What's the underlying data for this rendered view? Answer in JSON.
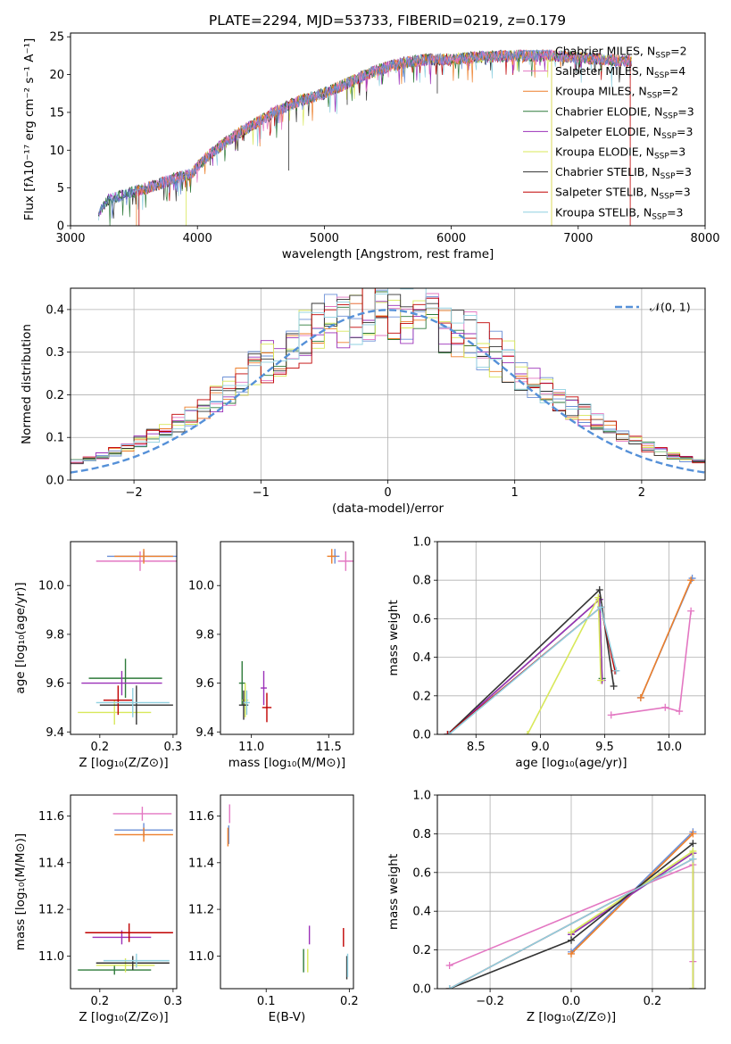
{
  "figure": {
    "title": "PLATE=2294, MJD=53733, FIBERID=0219, z=0.179"
  },
  "colors": {
    "chabrier_miles": "#6b8fd6",
    "salpeter_miles": "#e377c2",
    "kroupa_miles": "#ed7f2a",
    "chabrier_elodie": "#2e7a3a",
    "salpeter_elodie": "#9b30b8",
    "kroupa_elodie": "#d8e85a",
    "chabrier_stelib": "#333333",
    "salpeter_stelib": "#c00000",
    "kroupa_stelib": "#8fd0e0",
    "gaussian": "#5590d8",
    "grid": "#b0b0b0"
  },
  "legend_spectrum": [
    {
      "text": "Chabrier MILES, N",
      "sub": "SSP",
      "tail": "=2",
      "color_key": "chabrier_miles"
    },
    {
      "text": "Salpeter MILES, N",
      "sub": "SSP",
      "tail": "=4",
      "color_key": "salpeter_miles"
    },
    {
      "text": "Kroupa MILES, N",
      "sub": "SSP",
      "tail": "=2",
      "color_key": "kroupa_miles"
    },
    {
      "text": "Chabrier ELODIE, N",
      "sub": "SSP",
      "tail": "=3",
      "color_key": "chabrier_elodie"
    },
    {
      "text": "Salpeter ELODIE, N",
      "sub": "SSP",
      "tail": "=3",
      "color_key": "salpeter_elodie"
    },
    {
      "text": "Kroupa ELODIE, N",
      "sub": "SSP",
      "tail": "=3",
      "color_key": "kroupa_elodie"
    },
    {
      "text": "Chabrier STELIB, N",
      "sub": "SSP",
      "tail": "=3",
      "color_key": "chabrier_stelib"
    },
    {
      "text": "Salpeter STELIB, N",
      "sub": "SSP",
      "tail": "=3",
      "color_key": "salpeter_stelib"
    },
    {
      "text": "Kroupa STELIB, N",
      "sub": "SSP",
      "tail": "=3",
      "color_key": "kroupa_stelib"
    }
  ],
  "chart_data": [
    {
      "id": "spectrum",
      "type": "line",
      "xlabel": "wavelength [Angstrom, rest frame]",
      "ylabel": "Flux [fλ10⁻¹⁷ erg cm⁻² s⁻¹ A⁻¹]",
      "xlim": [
        3000,
        8000
      ],
      "ylim": [
        0,
        25.5
      ],
      "xticks": [
        3000,
        4000,
        5000,
        6000,
        7000,
        8000
      ],
      "yticks": [
        0,
        5,
        10,
        15,
        20,
        25
      ],
      "grid": false,
      "legend": "top-right",
      "continuum": [
        [
          3220,
          1.5
        ],
        [
          3300,
          3.5
        ],
        [
          3500,
          4.5
        ],
        [
          3700,
          5.5
        ],
        [
          3800,
          6.2
        ],
        [
          3950,
          6.8
        ],
        [
          4000,
          7.8
        ],
        [
          4100,
          9.5
        ],
        [
          4300,
          12.0
        ],
        [
          4400,
          13.0
        ],
        [
          4600,
          15.0
        ],
        [
          4800,
          16.5
        ],
        [
          5000,
          17.5
        ],
        [
          5200,
          19.0
        ],
        [
          5400,
          20.5
        ],
        [
          5600,
          21.5
        ],
        [
          5800,
          22.0
        ],
        [
          6000,
          22.0
        ],
        [
          6200,
          22.3
        ],
        [
          6500,
          22.5
        ],
        [
          6800,
          22.5
        ],
        [
          7000,
          22.3
        ],
        [
          7200,
          22.0
        ],
        [
          7420,
          21.8
        ]
      ],
      "features": [
        {
          "x": 4720,
          "y": 7.3
        },
        {
          "x": 5890,
          "y": 17.5
        },
        {
          "x": 5180,
          "y": 16.0
        },
        {
          "x": 4300,
          "y": 10.0
        },
        {
          "x": 4100,
          "y": 8.0
        }
      ]
    },
    {
      "id": "residuals",
      "type": "histogram",
      "xlabel": "(data-model)/error",
      "ylabel": "Normed distribution",
      "xlim": [
        -2.5,
        2.5
      ],
      "ylim": [
        0,
        0.45
      ],
      "xticks": [
        -2,
        -1,
        0,
        1,
        2
      ],
      "yticks": [
        0.0,
        0.1,
        0.2,
        0.3,
        0.4
      ],
      "grid": true,
      "legend": "top-right",
      "gaussian_label": "𝒩(0, 1)",
      "gaussian_mean": 0,
      "gaussian_sigma": 1,
      "bin_width": 0.1
    },
    {
      "id": "age_vs_Z",
      "type": "errorbar",
      "xlabel": "Z [log₁₀(Z/Z⊙)]",
      "ylabel": "age  [log₁₀(age/yr)]",
      "xlim": [
        0.16,
        0.305
      ],
      "ylim": [
        9.39,
        10.18
      ],
      "xticks": [
        0.2,
        0.3
      ],
      "yticks": [
        9.4,
        9.6,
        9.8,
        10.0
      ],
      "points": [
        {
          "x": 0.26,
          "y": 10.12,
          "xerr": 0.05,
          "yerr": 0.02,
          "color_key": "chabrier_miles"
        },
        {
          "x": 0.255,
          "y": 10.1,
          "xerr": 0.06,
          "yerr": 0.04,
          "color_key": "salpeter_miles"
        },
        {
          "x": 0.26,
          "y": 10.12,
          "xerr": 0.04,
          "yerr": 0.03,
          "color_key": "kroupa_miles"
        },
        {
          "x": 0.235,
          "y": 9.62,
          "xerr": 0.05,
          "yerr": 0.08,
          "color_key": "chabrier_elodie"
        },
        {
          "x": 0.23,
          "y": 9.6,
          "xerr": 0.055,
          "yerr": 0.05,
          "color_key": "salpeter_elodie"
        },
        {
          "x": 0.22,
          "y": 9.48,
          "xerr": 0.05,
          "yerr": 0.05,
          "color_key": "kroupa_elodie"
        },
        {
          "x": 0.25,
          "y": 9.51,
          "xerr": 0.05,
          "yerr": 0.08,
          "color_key": "chabrier_stelib"
        },
        {
          "x": 0.225,
          "y": 9.53,
          "xerr": 0.02,
          "yerr": 0.06,
          "color_key": "salpeter_stelib"
        },
        {
          "x": 0.245,
          "y": 9.52,
          "xerr": 0.05,
          "yerr": 0.06,
          "color_key": "kroupa_stelib"
        }
      ]
    },
    {
      "id": "age_vs_mass",
      "type": "errorbar",
      "xlabel": "mass [log₁₀(M/M⊙)]",
      "ylabel": "",
      "xlim": [
        10.8,
        11.66
      ],
      "ylim": [
        9.39,
        10.18
      ],
      "xticks": [
        11.0,
        11.5
      ],
      "yticks": [
        9.4,
        9.6,
        9.8,
        10.0
      ],
      "points": [
        {
          "x": 11.54,
          "y": 10.12,
          "xerr": 0.03,
          "yerr": 0.03,
          "color_key": "chabrier_miles"
        },
        {
          "x": 11.61,
          "y": 10.1,
          "xerr": 0.05,
          "yerr": 0.04,
          "color_key": "salpeter_miles"
        },
        {
          "x": 11.52,
          "y": 10.12,
          "xerr": 0.03,
          "yerr": 0.03,
          "color_key": "kroupa_miles"
        },
        {
          "x": 10.94,
          "y": 9.6,
          "xerr": 0.02,
          "yerr": 0.09,
          "color_key": "chabrier_elodie"
        },
        {
          "x": 11.08,
          "y": 9.58,
          "xerr": 0.02,
          "yerr": 0.07,
          "color_key": "salpeter_elodie"
        },
        {
          "x": 10.96,
          "y": 9.53,
          "xerr": 0.02,
          "yerr": 0.07,
          "color_key": "kroupa_elodie"
        },
        {
          "x": 10.95,
          "y": 9.51,
          "xerr": 0.03,
          "yerr": 0.06,
          "color_key": "chabrier_stelib"
        },
        {
          "x": 11.1,
          "y": 9.5,
          "xerr": 0.03,
          "yerr": 0.06,
          "color_key": "salpeter_stelib"
        },
        {
          "x": 10.97,
          "y": 9.52,
          "xerr": 0.02,
          "yerr": 0.05,
          "color_key": "kroupa_stelib"
        }
      ]
    },
    {
      "id": "weight_vs_age",
      "type": "line",
      "xlabel": "age  [log₁₀(age/yr)]",
      "ylabel": "mass weight",
      "xlim": [
        8.2,
        10.28
      ],
      "ylim": [
        0,
        1.0
      ],
      "xticks": [
        8.5,
        9.0,
        9.5,
        10.0
      ],
      "yticks": [
        0.0,
        0.2,
        0.4,
        0.6,
        0.8,
        1.0
      ],
      "grid": true,
      "series": [
        {
          "color_key": "chabrier_miles",
          "x": [
            9.78,
            10.18
          ],
          "y": [
            0.19,
            0.81
          ]
        },
        {
          "color_key": "salpeter_miles",
          "x": [
            9.55,
            9.97,
            10.08,
            10.17
          ],
          "y": [
            0.1,
            0.14,
            0.12,
            0.64
          ]
        },
        {
          "color_key": "kroupa_miles",
          "x": [
            9.78,
            10.17
          ],
          "y": [
            0.19,
            0.8
          ]
        },
        {
          "color_key": "chabrier_elodie",
          "x": [
            8.28,
            9.46,
            9.48
          ],
          "y": [
            0.0,
            0.7,
            0.29
          ]
        },
        {
          "color_key": "salpeter_elodie",
          "x": [
            8.28,
            9.46,
            9.48
          ],
          "y": [
            0.0,
            0.7,
            0.28
          ]
        },
        {
          "color_key": "kroupa_elodie",
          "x": [
            8.9,
            9.45,
            9.47
          ],
          "y": [
            0.0,
            0.71,
            0.28
          ]
        },
        {
          "color_key": "chabrier_stelib",
          "x": [
            8.28,
            9.46,
            9.57
          ],
          "y": [
            0.0,
            0.75,
            0.25
          ]
        },
        {
          "color_key": "salpeter_stelib",
          "x": [
            8.28,
            9.47,
            9.58
          ],
          "y": [
            0.0,
            0.66,
            0.33
          ]
        },
        {
          "color_key": "kroupa_stelib",
          "x": [
            8.29,
            9.47,
            9.59
          ],
          "y": [
            0.0,
            0.66,
            0.33
          ]
        }
      ]
    },
    {
      "id": "mass_vs_Z",
      "type": "errorbar",
      "xlabel": "Z [log₁₀(Z/Z⊙)]",
      "ylabel": "mass [log₁₀(M/M⊙)]",
      "xlim": [
        0.16,
        0.305
      ],
      "ylim": [
        10.86,
        11.69
      ],
      "xticks": [
        0.2,
        0.3
      ],
      "yticks": [
        11.0,
        11.2,
        11.4,
        11.6
      ],
      "points": [
        {
          "x": 0.26,
          "y": 11.54,
          "xerr": 0.04,
          "yerr": 0.03,
          "color_key": "chabrier_miles"
        },
        {
          "x": 0.258,
          "y": 11.61,
          "xerr": 0.04,
          "yerr": 0.03,
          "color_key": "salpeter_miles"
        },
        {
          "x": 0.26,
          "y": 11.52,
          "xerr": 0.04,
          "yerr": 0.03,
          "color_key": "kroupa_miles"
        },
        {
          "x": 0.22,
          "y": 10.94,
          "xerr": 0.05,
          "yerr": 0.02,
          "color_key": "chabrier_elodie"
        },
        {
          "x": 0.23,
          "y": 11.08,
          "xerr": 0.04,
          "yerr": 0.03,
          "color_key": "salpeter_elodie"
        },
        {
          "x": 0.235,
          "y": 10.96,
          "xerr": 0.04,
          "yerr": 0.03,
          "color_key": "kroupa_elodie"
        },
        {
          "x": 0.245,
          "y": 10.97,
          "xerr": 0.05,
          "yerr": 0.03,
          "color_key": "chabrier_stelib"
        },
        {
          "x": 0.24,
          "y": 11.1,
          "xerr": 0.06,
          "yerr": 0.04,
          "color_key": "salpeter_stelib"
        },
        {
          "x": 0.25,
          "y": 10.98,
          "xerr": 0.045,
          "yerr": 0.03,
          "color_key": "kroupa_stelib"
        }
      ]
    },
    {
      "id": "mass_vs_ebv",
      "type": "errorbar",
      "xlabel": "E(B-V)",
      "ylabel": "",
      "xlim": [
        0.045,
        0.205
      ],
      "ylim": [
        10.86,
        11.69
      ],
      "xticks": [
        0.1,
        0.2
      ],
      "yticks": [
        11.0,
        11.2,
        11.4,
        11.6
      ],
      "points": [
        {
          "x": 0.055,
          "y": 11.52,
          "xerr": 0.0,
          "yerr": 0.04,
          "color_key": "chabrier_miles"
        },
        {
          "x": 0.056,
          "y": 11.61,
          "xerr": 0.0,
          "yerr": 0.04,
          "color_key": "salpeter_miles"
        },
        {
          "x": 0.054,
          "y": 11.51,
          "xerr": 0.0,
          "yerr": 0.04,
          "color_key": "kroupa_miles"
        },
        {
          "x": 0.145,
          "y": 10.98,
          "xerr": 0.0,
          "yerr": 0.05,
          "color_key": "chabrier_elodie"
        },
        {
          "x": 0.152,
          "y": 11.09,
          "xerr": 0.0,
          "yerr": 0.04,
          "color_key": "salpeter_elodie"
        },
        {
          "x": 0.15,
          "y": 10.98,
          "xerr": 0.0,
          "yerr": 0.05,
          "color_key": "kroupa_elodie"
        },
        {
          "x": 0.197,
          "y": 10.95,
          "xerr": 0.0,
          "yerr": 0.05,
          "color_key": "chabrier_stelib"
        },
        {
          "x": 0.193,
          "y": 11.08,
          "xerr": 0.0,
          "yerr": 0.04,
          "color_key": "salpeter_stelib"
        },
        {
          "x": 0.198,
          "y": 10.96,
          "xerr": 0.0,
          "yerr": 0.05,
          "color_key": "kroupa_stelib"
        }
      ]
    },
    {
      "id": "weight_vs_Z",
      "type": "line",
      "xlabel": "Z [log₁₀(Z/Z⊙)]",
      "ylabel": "mass weight",
      "xlim": [
        -0.33,
        0.33
      ],
      "ylim": [
        0,
        1.0
      ],
      "xticks": [
        -0.2,
        0.0,
        0.2
      ],
      "yticks": [
        0.0,
        0.2,
        0.4,
        0.6,
        0.8,
        1.0
      ],
      "grid": true,
      "series": [
        {
          "color_key": "chabrier_miles",
          "x": [
            0.0,
            0.3
          ],
          "y": [
            0.19,
            0.81
          ]
        },
        {
          "color_key": "salpeter_miles",
          "x": [
            -0.3,
            0.3,
            0.3
          ],
          "y": [
            0.12,
            0.64,
            0.14
          ]
        },
        {
          "color_key": "kroupa_miles",
          "x": [
            0.0,
            0.3
          ],
          "y": [
            0.18,
            0.8
          ]
        },
        {
          "color_key": "chabrier_elodie",
          "x": [
            0.0,
            0.3,
            0.3
          ],
          "y": [
            0.28,
            0.7,
            0.0
          ]
        },
        {
          "color_key": "salpeter_elodie",
          "x": [
            0.0,
            0.3,
            0.3
          ],
          "y": [
            0.28,
            0.7,
            0.0
          ]
        },
        {
          "color_key": "kroupa_elodie",
          "x": [
            0.0,
            0.3,
            0.3
          ],
          "y": [
            0.29,
            0.71,
            0.0
          ]
        },
        {
          "color_key": "chabrier_stelib",
          "x": [
            -0.3,
            0.0,
            0.3
          ],
          "y": [
            0.0,
            0.25,
            0.75
          ]
        },
        {
          "color_key": "salpeter_stelib",
          "x": [
            -0.3,
            0.3
          ],
          "y": [
            0.0,
            0.67
          ]
        },
        {
          "color_key": "kroupa_stelib",
          "x": [
            -0.3,
            0.3
          ],
          "y": [
            0.0,
            0.67
          ]
        }
      ]
    }
  ]
}
